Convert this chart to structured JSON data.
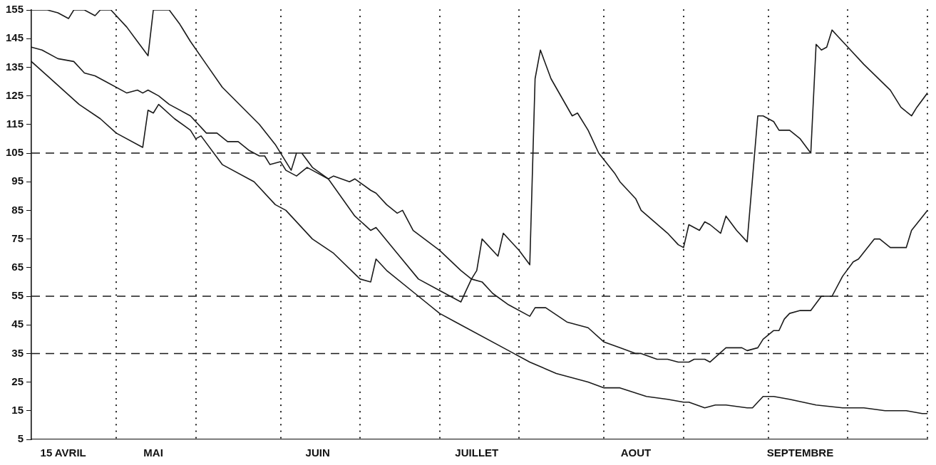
{
  "chart_data": {
    "type": "line",
    "marker": "none",
    "line_style": "solid",
    "grid": "x",
    "legend": false,
    "xlim": [
      "--04-15",
      "--10-01"
    ],
    "xticks": [
      {
        "value": "--04-21",
        "label": "15 AVRIL"
      },
      {
        "value": "--05-01",
        "label": null
      },
      {
        "value": "--05-08",
        "label": "MAI"
      },
      {
        "value": "--05-16",
        "label": null
      },
      {
        "value": "--06-01",
        "label": null
      },
      {
        "value": "--06-08",
        "label": "JUIN"
      },
      {
        "value": "--06-16",
        "label": null
      },
      {
        "value": "--07-01",
        "label": null
      },
      {
        "value": "--07-08",
        "label": "JUILLET"
      },
      {
        "value": "--07-16",
        "label": null
      },
      {
        "value": "--08-01",
        "label": null
      },
      {
        "value": "--08-07",
        "label": "AOUT"
      },
      {
        "value": "--08-16",
        "label": null
      },
      {
        "value": "--09-01",
        "label": null
      },
      {
        "value": "--09-07",
        "label": "SEPTEMBRE"
      },
      {
        "value": "--09-16",
        "label": null
      },
      {
        "value": "--10-01",
        "label": null
      }
    ],
    "ylim": [
      5,
      155
    ],
    "yticks": [
      5,
      15,
      25,
      35,
      45,
      55,
      65,
      75,
      85,
      95,
      105,
      115,
      125,
      135,
      145,
      155
    ],
    "ref_lines": [
      {
        "axis": "y",
        "value": 105,
        "line_style": "dashed",
        "color": "#1a1a1a"
      },
      {
        "axis": "y",
        "value": 55,
        "line_style": "dashed",
        "color": "#1a1a1a"
      },
      {
        "axis": "y",
        "value": 35,
        "line_style": "dashed",
        "color": "#1a1a1a"
      }
    ],
    "series": [
      {
        "color": "#1a1a1a",
        "x": [
          "--04-15",
          "--04-18",
          "--04-20",
          "--04-22",
          "--04-23",
          "--04-25",
          "--04-27",
          "--04-28",
          "--04-30",
          "--05-03",
          "--05-05",
          "--05-07",
          "--05-08",
          "--05-11",
          "--05-13",
          "--05-15",
          "--05-18",
          "--05-21",
          "--05-28",
          "--05-31",
          "--06-03",
          "--06-04",
          "--06-05",
          "--06-07",
          "--06-10",
          "--06-15",
          "--06-18",
          "--06-19",
          "--06-23",
          "--06-27",
          "--07-01",
          "--07-05",
          "--07-06",
          "--07-07",
          "--07-08",
          "--07-09",
          "--07-12",
          "--07-13",
          "--07-16",
          "--07-18",
          "--07-19",
          "--07-20",
          "--07-22",
          "--07-26",
          "--07-27",
          "--07-29",
          "--07-31",
          "--08-03",
          "--08-04",
          "--08-07",
          "--08-08",
          "--08-13",
          "--08-15",
          "--08-16",
          "--08-17",
          "--08-19",
          "--08-20",
          "--08-21",
          "--08-23",
          "--08-24",
          "--08-26",
          "--08-28",
          "--08-30",
          "--08-31",
          "--09-02",
          "--09-03",
          "--09-05",
          "--09-07",
          "--09-09",
          "--09-10",
          "--09-11",
          "--09-12",
          "--09-13",
          "--09-14",
          "--09-16",
          "--09-19",
          "--09-24",
          "--09-26",
          "--09-28",
          "--09-29",
          "--10-01"
        ],
        "values": [
          155,
          155,
          154,
          152,
          155,
          155,
          153,
          155,
          155,
          149,
          144,
          139,
          155,
          155,
          150,
          144,
          136,
          128,
          115,
          108,
          99,
          105,
          105,
          100,
          96,
          83,
          78,
          79,
          70,
          61,
          57,
          53,
          57,
          61,
          64,
          75,
          69,
          77,
          71,
          66,
          131,
          141,
          131,
          118,
          119,
          113,
          105,
          98,
          95,
          89,
          85,
          77,
          73,
          72,
          80,
          78,
          81,
          80,
          77,
          83,
          78,
          74,
          118,
          118,
          116,
          113,
          113,
          110,
          105,
          143,
          141,
          142,
          148,
          146,
          142,
          136,
          127,
          121,
          118,
          121,
          126
        ]
      },
      {
        "color": "#1a1a1a",
        "x": [
          "--04-15",
          "--04-17",
          "--04-20",
          "--04-23",
          "--04-25",
          "--04-27",
          "--04-29",
          "--05-03",
          "--05-05",
          "--05-06",
          "--05-07",
          "--05-09",
          "--05-11",
          "--05-15",
          "--05-18",
          "--05-20",
          "--05-22",
          "--05-24",
          "--05-26",
          "--05-28",
          "--05-29",
          "--05-30",
          "--06-01",
          "--06-02",
          "--06-04",
          "--06-06",
          "--06-07",
          "--06-10",
          "--06-11",
          "--06-14",
          "--06-15",
          "--06-18",
          "--06-19",
          "--06-21",
          "--06-23",
          "--06-24",
          "--06-26",
          "--07-01",
          "--07-05",
          "--07-07",
          "--07-09",
          "--07-11",
          "--07-14",
          "--07-18",
          "--07-19",
          "--07-21",
          "--07-25",
          "--07-29",
          "--08-01",
          "--08-04",
          "--08-07",
          "--08-08",
          "--08-11",
          "--08-13",
          "--08-15",
          "--08-17",
          "--08-18",
          "--08-20",
          "--08-21",
          "--08-24",
          "--08-27",
          "--08-28",
          "--08-30",
          "--08-31",
          "--09-02",
          "--09-03",
          "--09-04",
          "--09-05",
          "--09-07",
          "--09-09",
          "--09-11",
          "--09-13",
          "--09-15",
          "--09-17",
          "--09-18",
          "--09-21",
          "--09-22",
          "--09-24",
          "--09-27",
          "--09-28",
          "--10-01"
        ],
        "values": [
          142,
          141,
          138,
          137,
          133,
          132,
          130,
          126,
          127,
          126,
          127,
          125,
          122,
          118,
          112,
          112,
          109,
          109,
          106,
          104,
          104,
          101,
          102,
          99,
          97,
          100,
          99,
          96,
          97,
          95,
          96,
          92,
          91,
          87,
          84,
          85,
          78,
          71,
          64,
          61,
          60,
          56,
          52,
          48,
          51,
          51,
          46,
          44,
          39,
          37,
          35,
          35,
          33,
          33,
          32,
          32,
          33,
          33,
          32,
          37,
          37,
          36,
          37,
          40,
          43,
          43,
          47,
          49,
          50,
          50,
          55,
          55,
          62,
          67,
          68,
          75,
          75,
          72,
          72,
          78,
          85
        ]
      },
      {
        "color": "#1a1a1a",
        "x": [
          "--04-15",
          "--04-18",
          "--04-24",
          "--04-28",
          "--05-01",
          "--05-06",
          "--05-07",
          "--05-08",
          "--05-09",
          "--05-12",
          "--05-15",
          "--05-16",
          "--05-17",
          "--05-21",
          "--05-27",
          "--05-31",
          "--06-02",
          "--06-07",
          "--06-11",
          "--06-16",
          "--06-18",
          "--06-19",
          "--06-21",
          "--06-27",
          "--07-01",
          "--07-04",
          "--07-14",
          "--07-18",
          "--07-23",
          "--07-29",
          "--08-01",
          "--08-04",
          "--08-09",
          "--08-13",
          "--08-16",
          "--08-17",
          "--08-20",
          "--08-22",
          "--08-24",
          "--08-28",
          "--08-29",
          "--08-31",
          "--09-02",
          "--09-05",
          "--09-10",
          "--09-15",
          "--09-17",
          "--09-19",
          "--09-23",
          "--09-27",
          "--09-30",
          "--10-01"
        ],
        "values": [
          137,
          132,
          122,
          117,
          112,
          107,
          120,
          119,
          122,
          117,
          113,
          110,
          111,
          101,
          95,
          87,
          85,
          75,
          70,
          61,
          60,
          68,
          64,
          55,
          49,
          46,
          36,
          32,
          28,
          25,
          23,
          23,
          20,
          19,
          18,
          18,
          16,
          17,
          17,
          16,
          16,
          20,
          20,
          19,
          17,
          16,
          16,
          16,
          15,
          15,
          14,
          14
        ]
      }
    ]
  }
}
